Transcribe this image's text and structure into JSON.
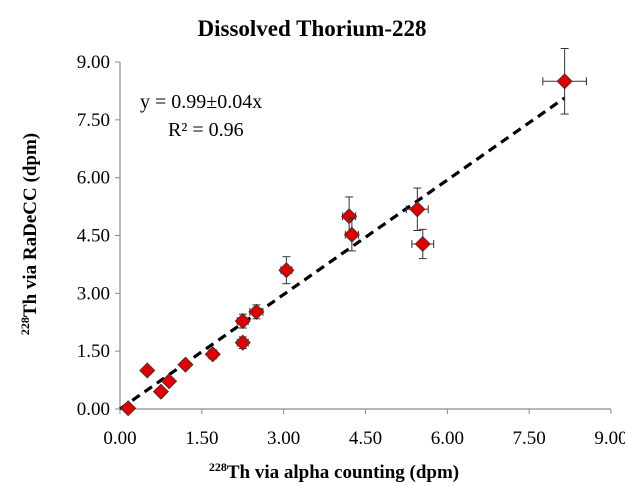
{
  "chart_data": {
    "type": "scatter",
    "title": "Dissolved Thorium-228",
    "xlabel": {
      "sup": "228",
      "text": "Th via alpha counting (dpm)"
    },
    "ylabel": {
      "sup": "228",
      "text": "Th via RaDeCC (dpm)"
    },
    "xlim": [
      0,
      9
    ],
    "ylim": [
      0,
      9
    ],
    "xticks": [
      "0.00",
      "1.50",
      "3.00",
      "4.50",
      "6.00",
      "7.50",
      "9.00"
    ],
    "yticks": [
      "0.00",
      "1.50",
      "3.00",
      "4.50",
      "6.00",
      "7.50",
      "9.00"
    ],
    "grid": false,
    "marker_color": "#e00000",
    "marker_edge": "#333333",
    "trendline": {
      "slope": 0.99,
      "intercept": 0,
      "x_range": [
        0,
        8.15
      ],
      "style": "dashed"
    },
    "annotations": [
      "y = 0.99±0.04x",
      "R² = 0.96"
    ],
    "points": [
      {
        "x": 0.15,
        "y": 0.02,
        "xerr": 0.03,
        "yerr": 0.04
      },
      {
        "x": 0.5,
        "y": 1.0,
        "xerr": 0.05,
        "yerr": 0.08
      },
      {
        "x": 0.75,
        "y": 0.45,
        "xerr": 0.05,
        "yerr": 0.05
      },
      {
        "x": 0.9,
        "y": 0.72,
        "xerr": 0.05,
        "yerr": 0.08
      },
      {
        "x": 1.2,
        "y": 1.15,
        "xerr": 0.06,
        "yerr": 0.1
      },
      {
        "x": 1.7,
        "y": 1.42,
        "xerr": 0.08,
        "yerr": 0.12
      },
      {
        "x": 2.25,
        "y": 1.72,
        "xerr": 0.1,
        "yerr": 0.15
      },
      {
        "x": 2.25,
        "y": 2.28,
        "xerr": 0.1,
        "yerr": 0.18
      },
      {
        "x": 2.5,
        "y": 2.52,
        "xerr": 0.12,
        "yerr": 0.18
      },
      {
        "x": 3.05,
        "y": 3.6,
        "xerr": 0.1,
        "yerr": 0.35
      },
      {
        "x": 4.2,
        "y": 5.0,
        "xerr": 0.12,
        "yerr": 0.5
      },
      {
        "x": 4.25,
        "y": 4.52,
        "xerr": 0.12,
        "yerr": 0.42
      },
      {
        "x": 5.45,
        "y": 5.18,
        "xerr": 0.2,
        "yerr": 0.55
      },
      {
        "x": 5.55,
        "y": 4.28,
        "xerr": 0.2,
        "yerr": 0.38
      },
      {
        "x": 8.15,
        "y": 8.5,
        "xerr": 0.4,
        "yerr": 0.85
      }
    ]
  }
}
